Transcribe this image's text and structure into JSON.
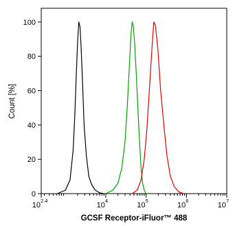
{
  "chart_data": {
    "type": "line",
    "title": "",
    "xlabel": "GCSF Receptor-iFluor™ 488",
    "ylabel": "Count [%]",
    "x_scale": "log10",
    "xlim": [
      251,
      10000000
    ],
    "ylim": [
      0,
      108
    ],
    "x_ticks": [
      {
        "base": "10",
        "exp": "2.4",
        "value": 251
      },
      {
        "base": "10",
        "exp": "4",
        "value": 10000
      },
      {
        "base": "10",
        "exp": "5",
        "value": 100000
      },
      {
        "base": "10",
        "exp": "6",
        "value": 1000000
      },
      {
        "base": "10",
        "exp": "7",
        "value": 10000000
      }
    ],
    "y_ticks": [
      "0",
      "20",
      "40",
      "60",
      "80",
      "100"
    ],
    "y_tick_values": [
      0,
      20,
      40,
      60,
      80,
      100
    ],
    "grid": false,
    "legend": "none",
    "series": [
      {
        "color": "#000000",
        "x": [
          630,
          1000,
          1300,
          1550,
          1700,
          1850,
          2000,
          2150,
          2300,
          2450,
          2650,
          2900,
          3300,
          3800,
          4500,
          5500,
          7000,
          9000
        ],
        "y": [
          0,
          2,
          8,
          25,
          45,
          68,
          88,
          100,
          97,
          85,
          65,
          40,
          22,
          10,
          5,
          2,
          0.5,
          0
        ]
      },
      {
        "color": "#00a000",
        "x": [
          10000,
          15000,
          20000,
          25000,
          30000,
          34000,
          38000,
          42000,
          45000,
          48000,
          52000,
          57000,
          62000,
          68000,
          75000,
          82000,
          90000,
          100000
        ],
        "y": [
          0,
          2,
          6,
          15,
          30,
          50,
          72,
          92,
          100,
          98,
          88,
          70,
          52,
          32,
          15,
          6,
          2,
          0
        ]
      },
      {
        "color": "#e00000",
        "x": [
          45000,
          60000,
          75000,
          90000,
          105000,
          120000,
          140000,
          155000,
          170000,
          195000,
          230000,
          280000,
          330000,
          400000,
          500000,
          650000,
          850000
        ],
        "y": [
          0,
          2,
          8,
          20,
          38,
          60,
          85,
          100,
          98,
          85,
          60,
          38,
          22,
          10,
          4,
          1,
          0
        ]
      }
    ]
  }
}
